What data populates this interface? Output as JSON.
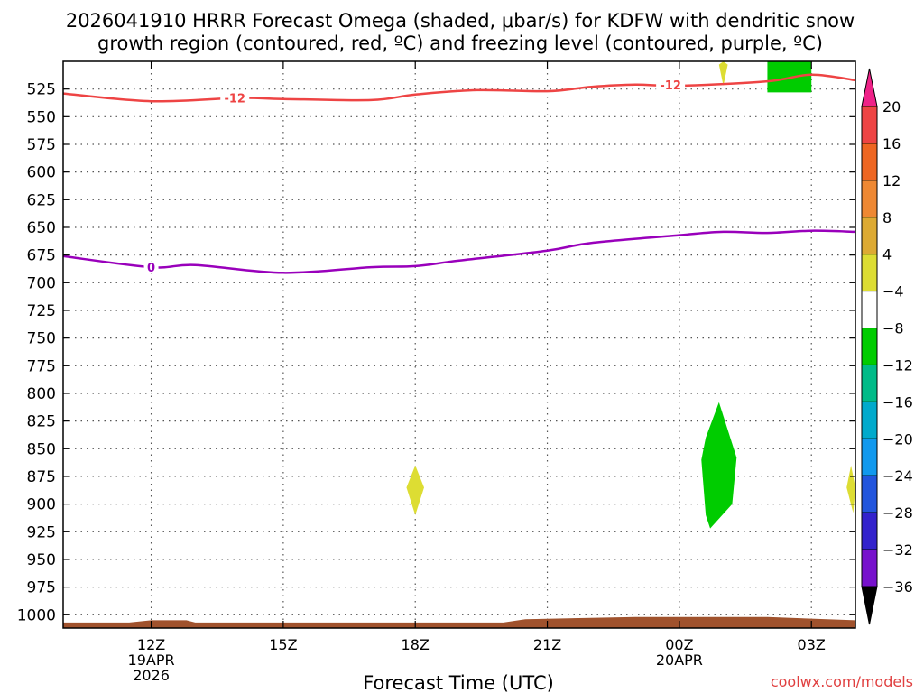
{
  "chart_data": {
    "type": "heatmap",
    "title_line1": "2026041910 HRRR Forecast Omega (shaded, μbar/s) for KDFW with dendritic snow",
    "title_line2": "growth region (contoured, red, ºC) and freezing level (contoured, purple, ºC)",
    "xlabel": "Forecast Time (UTC)",
    "credit": "coolwx.com/models",
    "x_ticks": [
      {
        "hour": 12,
        "label": "12Z",
        "sub1": "19APR",
        "sub2": "2026"
      },
      {
        "hour": 15,
        "label": "15Z",
        "sub1": "",
        "sub2": ""
      },
      {
        "hour": 18,
        "label": "18Z",
        "sub1": "",
        "sub2": ""
      },
      {
        "hour": 21,
        "label": "21Z",
        "sub1": "",
        "sub2": ""
      },
      {
        "hour": 24,
        "label": "00Z",
        "sub1": "20APR",
        "sub2": ""
      },
      {
        "hour": 27,
        "label": "03Z",
        "sub1": "",
        "sub2": ""
      }
    ],
    "xlim": [
      10,
      28
    ],
    "ylim": [
      1012,
      500
    ],
    "y_ticks": [
      525,
      550,
      575,
      600,
      625,
      650,
      675,
      700,
      725,
      750,
      775,
      800,
      825,
      850,
      875,
      900,
      925,
      950,
      975,
      1000
    ],
    "grid": true,
    "colorbar": {
      "labels": [
        "20",
        "16",
        "12",
        "8",
        "4",
        "−4",
        "−8",
        "−12",
        "−16",
        "−20",
        "−24",
        "−28",
        "−32",
        "−36"
      ],
      "colors": [
        "#ee2288",
        "#ee4444",
        "#ee6622",
        "#ee8833",
        "#ddaa33",
        "#dddd33",
        "#ffffff",
        "#00cc00",
        "#00bb88",
        "#00aacc",
        "#1199ee",
        "#2255dd",
        "#3322cc",
        "#7711cc",
        "#9900bb",
        "#aaaaaa",
        "#000000"
      ]
    },
    "contours": [
      {
        "label": "-12",
        "color": "#ee4444",
        "points": [
          [
            10,
            529
          ],
          [
            12,
            536
          ],
          [
            14,
            533
          ],
          [
            15,
            534
          ],
          [
            17,
            535
          ],
          [
            18,
            530
          ],
          [
            19.4,
            526
          ],
          [
            21,
            527
          ],
          [
            22,
            523
          ],
          [
            23,
            521
          ],
          [
            24,
            522
          ],
          [
            26,
            518
          ],
          [
            27,
            512
          ],
          [
            28,
            517
          ]
        ],
        "label_at": [
          [
            13.9,
            533
          ],
          [
            23.8,
            521
          ]
        ]
      },
      {
        "label": "0",
        "color": "#9900bb",
        "points": [
          [
            10,
            676
          ],
          [
            12,
            686
          ],
          [
            13,
            684
          ],
          [
            15,
            691
          ],
          [
            17,
            686
          ],
          [
            18,
            685
          ],
          [
            19,
            680
          ],
          [
            21,
            671
          ],
          [
            22,
            664
          ],
          [
            24,
            657
          ],
          [
            25,
            654
          ],
          [
            26,
            655
          ],
          [
            27,
            653
          ],
          [
            28,
            654
          ]
        ],
        "label_at": [
          [
            12,
            686
          ]
        ]
      }
    ],
    "shaded_regions": [
      {
        "value": 6,
        "color": "#dddd33",
        "points": [
          [
            18,
            865
          ],
          [
            18.2,
            885
          ],
          [
            18,
            910
          ],
          [
            17.8,
            885
          ]
        ]
      },
      {
        "value": -6,
        "color": "#00cc00",
        "points": [
          [
            24.9,
            808
          ],
          [
            25.3,
            858
          ],
          [
            25.2,
            900
          ],
          [
            24.7,
            922
          ],
          [
            24.6,
            910
          ],
          [
            24.5,
            860
          ],
          [
            24.6,
            840
          ]
        ]
      },
      {
        "value": 6,
        "color": "#dddd33",
        "points": [
          [
            27.9,
            865
          ],
          [
            28,
            885
          ],
          [
            27.95,
            908
          ],
          [
            27.8,
            885
          ]
        ]
      },
      {
        "value": -6,
        "color": "#00cc00",
        "points": [
          [
            26,
            495
          ],
          [
            27,
            495
          ],
          [
            27,
            528
          ],
          [
            26,
            528
          ]
        ]
      },
      {
        "value": 6,
        "color": "#dddd33",
        "points": [
          [
            25,
            500
          ],
          [
            25.1,
            503
          ],
          [
            25,
            522
          ],
          [
            24.9,
            503
          ]
        ]
      }
    ],
    "ground": {
      "color": "#a0522d",
      "points": [
        [
          10,
          1007
        ],
        [
          11.5,
          1007
        ],
        [
          12,
          1005
        ],
        [
          12.8,
          1005
        ],
        [
          13,
          1007
        ],
        [
          20,
          1007
        ],
        [
          20.5,
          1004
        ],
        [
          23,
          1002
        ],
        [
          26,
          1002
        ],
        [
          28,
          1005
        ]
      ]
    }
  }
}
